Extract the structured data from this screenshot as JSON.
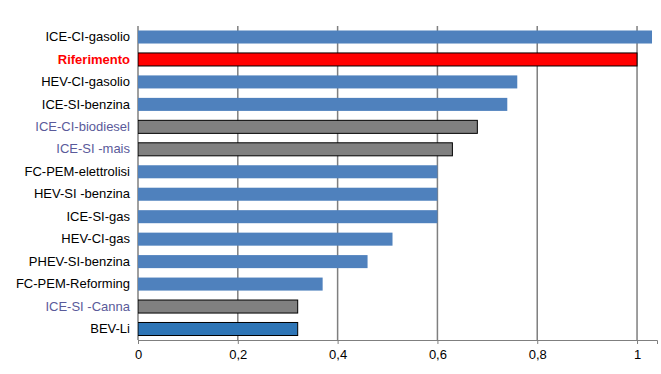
{
  "chart_data": {
    "type": "bar",
    "orientation": "horizontal",
    "categories": [
      "ICE-CI-gasolio",
      "Riferimento",
      "HEV-CI-gasolio",
      "ICE-SI-benzina",
      "ICE-CI-biodiesel",
      "ICE-SI -mais",
      "FC-PEM-elettrolisi",
      "HEV-SI -benzina",
      "ICE-SI-gas",
      "HEV-CI-gas",
      "PHEV-SI-benzina",
      "FC-PEM-Reforming",
      "ICE-SI -Canna",
      "BEV-Li"
    ],
    "values": [
      1.03,
      1.0,
      0.76,
      0.74,
      0.68,
      0.63,
      0.6,
      0.6,
      0.6,
      0.51,
      0.46,
      0.37,
      0.32,
      0.32
    ],
    "colors": [
      "#4f81bd",
      "#ff0000",
      "#4f81bd",
      "#4f81bd",
      "#808080",
      "#808080",
      "#4f81bd",
      "#4f81bd",
      "#4f81bd",
      "#4f81bd",
      "#4f81bd",
      "#4f81bd",
      "#808080",
      "#2e75b6"
    ],
    "xlim": [
      0,
      1.04
    ],
    "xticks": [
      0,
      {
        "value": 0.2,
        "label": "0,2"
      },
      {
        "value": 0.4,
        "label": "0,4"
      },
      {
        "value": 0.6,
        "label": "0,6"
      },
      {
        "value": 0.8,
        "label": "0,8"
      },
      1
    ],
    "grid": true
  }
}
